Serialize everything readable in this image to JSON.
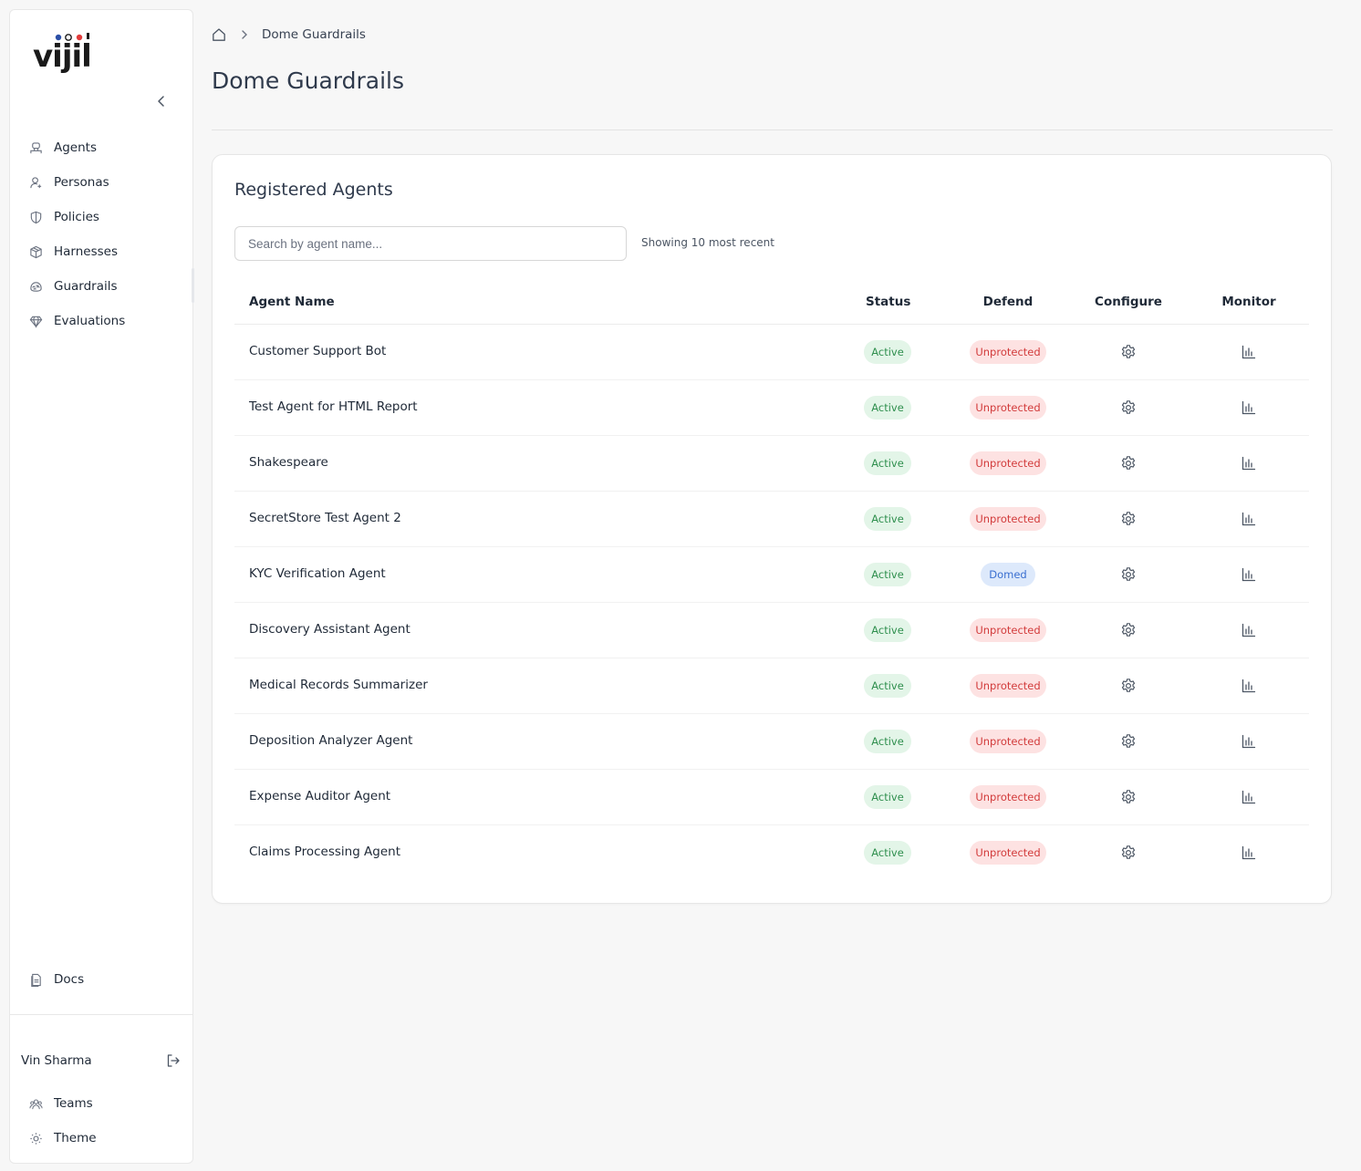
{
  "sidebar": {
    "logo_text": "vijil",
    "items": [
      {
        "label": "Agents",
        "icon": "agent-icon"
      },
      {
        "label": "Personas",
        "icon": "persona-icon"
      },
      {
        "label": "Policies",
        "icon": "shield-icon"
      },
      {
        "label": "Harnesses",
        "icon": "box-icon"
      },
      {
        "label": "Guardrails",
        "icon": "brain-icon"
      },
      {
        "label": "Evaluations",
        "icon": "gem-icon"
      }
    ],
    "docs_label": "Docs",
    "user_name": "Vin Sharma",
    "bottom_items": [
      {
        "label": "Teams",
        "icon": "teams-icon"
      },
      {
        "label": "Theme",
        "icon": "sun-icon"
      }
    ]
  },
  "breadcrumb": {
    "current": "Dome Guardrails"
  },
  "page_title": "Dome Guardrails",
  "card": {
    "title": "Registered Agents",
    "search_placeholder": "Search by agent name...",
    "showing_text": "Showing 10 most recent",
    "columns": {
      "name": "Agent Name",
      "status": "Status",
      "defend": "Defend",
      "configure": "Configure",
      "monitor": "Monitor"
    },
    "rows": [
      {
        "name": "Customer Support Bot",
        "status": "Active",
        "defend": "Unprotected"
      },
      {
        "name": "Test Agent for HTML Report",
        "status": "Active",
        "defend": "Unprotected"
      },
      {
        "name": "Shakespeare",
        "status": "Active",
        "defend": "Unprotected"
      },
      {
        "name": "SecretStore Test Agent 2",
        "status": "Active",
        "defend": "Unprotected"
      },
      {
        "name": "KYC Verification Agent",
        "status": "Active",
        "defend": "Domed"
      },
      {
        "name": "Discovery Assistant Agent",
        "status": "Active",
        "defend": "Unprotected"
      },
      {
        "name": "Medical Records Summarizer",
        "status": "Active",
        "defend": "Unprotected"
      },
      {
        "name": "Deposition Analyzer Agent",
        "status": "Active",
        "defend": "Unprotected"
      },
      {
        "name": "Expense Auditor Agent",
        "status": "Active",
        "defend": "Unprotected"
      },
      {
        "name": "Claims Processing Agent",
        "status": "Active",
        "defend": "Unprotected"
      }
    ]
  },
  "colors": {
    "active_bg": "#e3f5e8",
    "active_fg": "#2f8f4e",
    "unprotected_bg": "#fde2e2",
    "unprotected_fg": "#d23b3b",
    "domed_bg": "#dde9fb",
    "domed_fg": "#3a6fd0",
    "logo_blue": "#2b4fa6",
    "logo_red": "#e23b3b"
  }
}
